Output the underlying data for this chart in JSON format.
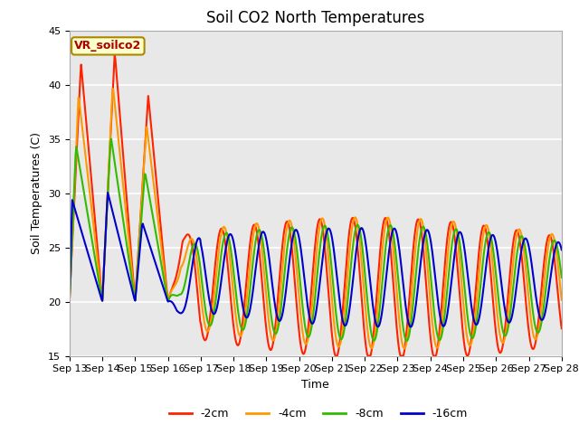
{
  "title": "Soil CO2 North Temperatures",
  "ylabel": "Soil Temperatures (C)",
  "xlabel": "Time",
  "ylim": [
    15,
    45
  ],
  "xlim": [
    0,
    15
  ],
  "xtick_labels": [
    "Sep 13",
    "Sep 14",
    "Sep 15",
    "Sep 16",
    "Sep 17",
    "Sep 18",
    "Sep 19",
    "Sep 20",
    "Sep 21",
    "Sep 22",
    "Sep 23",
    "Sep 24",
    "Sep 25",
    "Sep 26",
    "Sep 27",
    "Sep 28"
  ],
  "ytick_values": [
    15,
    20,
    25,
    30,
    35,
    40,
    45
  ],
  "bg_color": "#e8e8e8",
  "plot_bg": "#e8e8e8",
  "legend_label": "VR_soilco2",
  "series_colors": [
    "#ff2200",
    "#ff9900",
    "#33bb00",
    "#0000cc"
  ],
  "series_labels": [
    "-2cm",
    "-4cm",
    "-8cm",
    "-16cm"
  ],
  "series_linewidths": [
    1.5,
    1.5,
    1.5,
    1.5
  ],
  "title_fontsize": 12,
  "axis_fontsize": 9,
  "tick_fontsize": 8
}
